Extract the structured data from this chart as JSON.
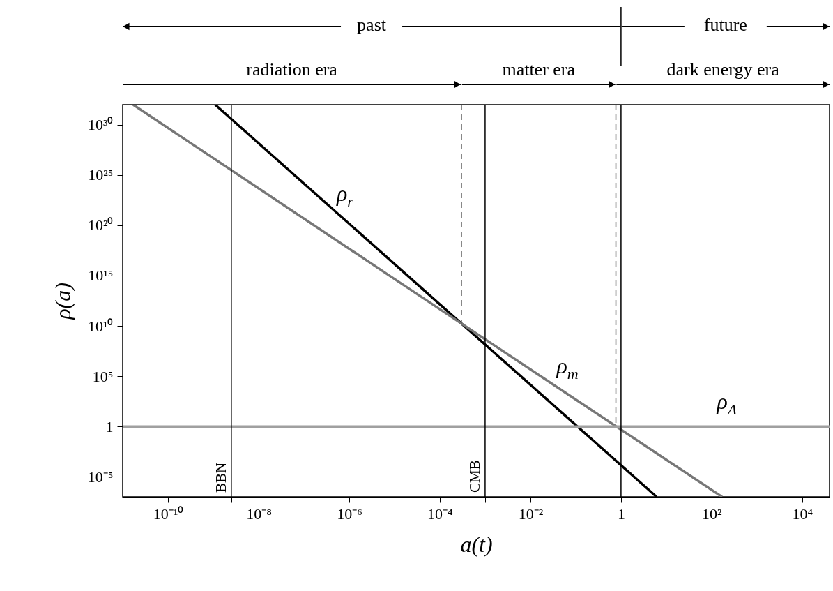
{
  "chart_data": {
    "type": "line",
    "xlabel": "a(t)",
    "ylabel": "ρ(a)",
    "log": "xy",
    "xlim": [
      1e-11,
      40000.0
    ],
    "ylim": [
      1e-07,
      1e+32
    ],
    "xticks": [
      {
        "value": 1e-10,
        "label": "10⁻¹⁰"
      },
      {
        "value": 2.5e-09,
        "label": null
      },
      {
        "value": 1e-08,
        "label": "10⁻⁸"
      },
      {
        "value": 1e-06,
        "label": "10⁻⁶"
      },
      {
        "value": 0.0001,
        "label": "10⁻⁴"
      },
      {
        "value": 0.001,
        "label": null
      },
      {
        "value": 0.01,
        "label": "10⁻²"
      },
      1,
      {
        "value": 100.0,
        "label": "10²"
      },
      {
        "value": 10000.0,
        "label": "10⁴"
      }
    ],
    "yticks": [
      {
        "value": 1e+30,
        "label": "10³⁰"
      },
      {
        "value": 1e+25,
        "label": "10²⁵"
      },
      {
        "value": 1e+20,
        "label": "10²⁰"
      },
      {
        "value": 1000000000000000.0,
        "label": "10¹⁵"
      },
      {
        "value": 10000000000.0,
        "label": "10¹⁰"
      },
      {
        "value": 100000.0,
        "label": "10⁵"
      },
      1,
      {
        "value": 1e-05,
        "label": "10⁻⁵"
      }
    ],
    "series": [
      {
        "name": "ρ$_{r}$",
        "color": "#000000",
        "x": [
          1.1e-09,
          0.0001,
          6.1
        ],
        "values": [
          1e+32,
          1400000000000.0,
          1e-07
        ]
      },
      {
        "name": "ρ$_{m}$",
        "color": "#777777",
        "x": [
          1.7e-11,
          1e-05,
          170
        ],
        "values": [
          1e+32,
          460000000000000.0,
          1e-07
        ]
      },
      {
        "name": "ρ$_{Λ}$",
        "color": "#a0a0a0",
        "x": [
          1e-11,
          40000.0
        ],
        "values": [
          1,
          1
        ]
      }
    ],
    "ref_lines": [
      {
        "axis": "x",
        "value": 2.5e-09,
        "label": "BBN",
        "color": "#000000",
        "line_style": "solid"
      },
      {
        "axis": "x",
        "value": 0.0003,
        "color": "#555555",
        "line_style": "dashed"
      },
      {
        "axis": "x",
        "value": 0.001,
        "label": "CMB",
        "color": "#000000",
        "line_style": "solid"
      },
      {
        "axis": "x",
        "value": 0.77,
        "color": "#555555",
        "line_style": "dashed"
      },
      {
        "axis": "x",
        "value": 1,
        "color": "#000000",
        "line_style": "solid"
      }
    ],
    "annotations": [
      "past",
      "future",
      "radiation era",
      "matter era",
      "dark energy era"
    ],
    "grid": false,
    "legend": false,
    "marker": "none",
    "line_style": "solid"
  }
}
